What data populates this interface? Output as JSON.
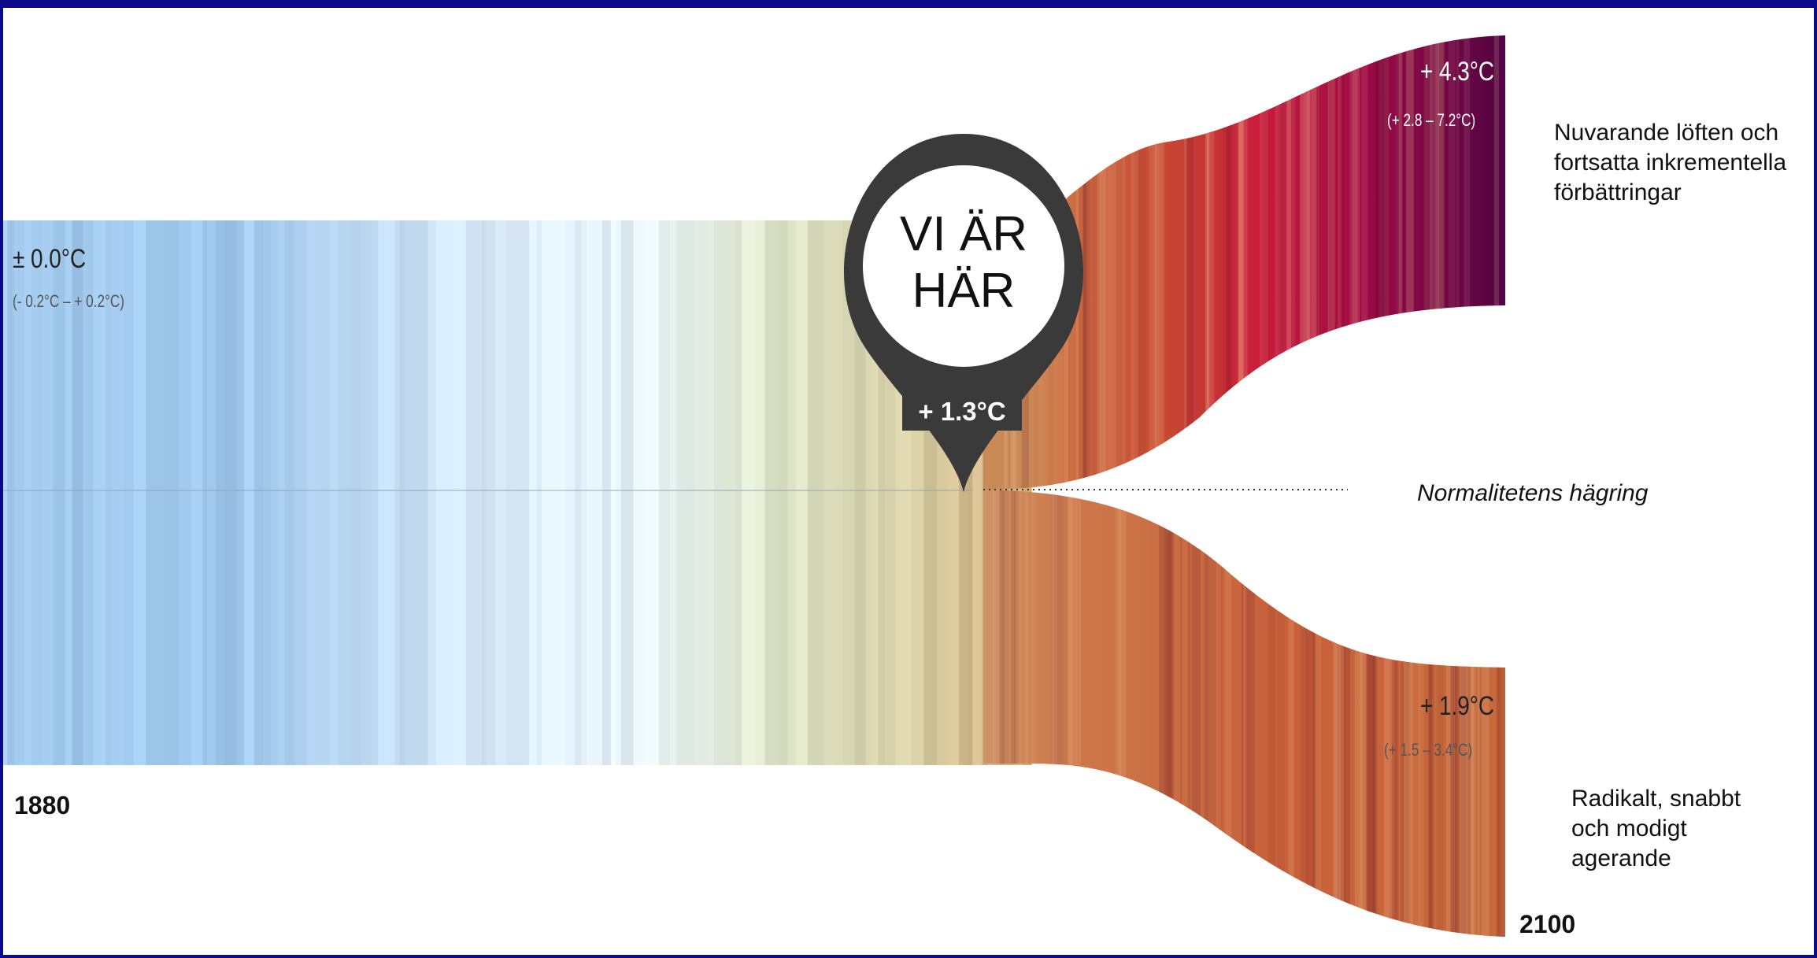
{
  "pin": {
    "line1": "VI ÄR",
    "line2": "HÄR",
    "badge": "+ 1.3°C"
  },
  "start": {
    "temp": "± 0.0°C",
    "range": "(- 0.2°C – + 0.2°C)",
    "year": "1880"
  },
  "upper_path": {
    "temp": "+ 4.3°C",
    "range": "(+ 2.8 – 7.2°C)",
    "description": "Nuvarande löften och fortsatta inkrementella förbättringar"
  },
  "lower_path": {
    "temp": "+ 1.9°C",
    "range": "(+ 1.5 – 3.4°C)",
    "description": "Radikalt, snabbt och modigt agerande",
    "year": "2100"
  },
  "mirage_label": "Normalitetens hägring",
  "colors": {
    "frame": "#0a0a8a",
    "pin": "#3a3a3a",
    "cool": "#a3cbee",
    "neutral": "#dde3c6",
    "warm": "#c8603a",
    "hot": "#5a0644"
  }
}
